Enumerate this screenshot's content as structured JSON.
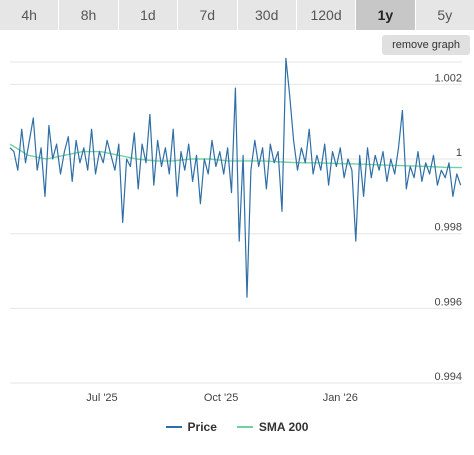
{
  "tabs": [
    {
      "label": "4h",
      "active": false
    },
    {
      "label": "8h",
      "active": false
    },
    {
      "label": "1d",
      "active": false
    },
    {
      "label": "7d",
      "active": false
    },
    {
      "label": "30d",
      "active": false
    },
    {
      "label": "120d",
      "active": false
    },
    {
      "label": "1y",
      "active": true
    },
    {
      "label": "5y",
      "active": false
    }
  ],
  "remove_graph_label": "remove graph",
  "chart_data": {
    "type": "line",
    "title": "",
    "xlabel": "",
    "ylabel": "",
    "ylim": [
      0.994,
      1.0026
    ],
    "yticks": [
      {
        "value": 1.002,
        "label": "1.002"
      },
      {
        "value": 1.0,
        "label": "1"
      },
      {
        "value": 0.998,
        "label": "0.998"
      },
      {
        "value": 0.996,
        "label": "0.996"
      },
      {
        "value": 0.994,
        "label": "0.994"
      }
    ],
    "xlim": [
      "2025-04-21",
      "2026-04-05"
    ],
    "xticks": [
      {
        "date": "2025-07-01",
        "label": "Jul '25"
      },
      {
        "date": "2025-10-01",
        "label": "Oct '25"
      },
      {
        "date": "2026-01-01",
        "label": "Jan '26"
      }
    ],
    "grid": true,
    "legend_position": "bottom",
    "series": [
      {
        "name": "Price",
        "color": "#2f6fa6",
        "x": [
          "2025-04-21",
          "2025-04-24",
          "2025-04-27",
          "2025-04-30",
          "2025-05-03",
          "2025-05-06",
          "2025-05-09",
          "2025-05-12",
          "2025-05-15",
          "2025-05-18",
          "2025-05-21",
          "2025-05-24",
          "2025-05-27",
          "2025-05-30",
          "2025-06-02",
          "2025-06-05",
          "2025-06-08",
          "2025-06-11",
          "2025-06-14",
          "2025-06-17",
          "2025-06-20",
          "2025-06-23",
          "2025-06-26",
          "2025-06-29",
          "2025-07-02",
          "2025-07-05",
          "2025-07-08",
          "2025-07-11",
          "2025-07-14",
          "2025-07-17",
          "2025-07-20",
          "2025-07-23",
          "2025-07-26",
          "2025-07-29",
          "2025-08-01",
          "2025-08-04",
          "2025-08-07",
          "2025-08-10",
          "2025-08-13",
          "2025-08-16",
          "2025-08-19",
          "2025-08-22",
          "2025-08-25",
          "2025-08-28",
          "2025-08-31",
          "2025-09-03",
          "2025-09-06",
          "2025-09-09",
          "2025-09-12",
          "2025-09-15",
          "2025-09-18",
          "2025-09-21",
          "2025-09-24",
          "2025-09-27",
          "2025-09-30",
          "2025-10-03",
          "2025-10-06",
          "2025-10-09",
          "2025-10-12",
          "2025-10-15",
          "2025-10-18",
          "2025-10-21",
          "2025-10-24",
          "2025-10-27",
          "2025-10-30",
          "2025-11-02",
          "2025-11-05",
          "2025-11-08",
          "2025-11-11",
          "2025-11-14",
          "2025-11-17",
          "2025-11-20",
          "2025-11-23",
          "2025-11-26",
          "2025-11-29",
          "2025-12-02",
          "2025-12-05",
          "2025-12-08",
          "2025-12-11",
          "2025-12-14",
          "2025-12-17",
          "2025-12-20",
          "2025-12-23",
          "2025-12-26",
          "2025-12-29",
          "2026-01-01",
          "2026-01-04",
          "2026-01-07",
          "2026-01-10",
          "2026-01-13",
          "2026-01-16",
          "2026-01-19",
          "2026-01-22",
          "2026-01-25",
          "2026-01-28",
          "2026-01-31",
          "2026-02-03",
          "2026-02-06",
          "2026-02-09",
          "2026-02-12",
          "2026-02-15",
          "2026-02-18",
          "2026-02-21",
          "2026-02-24",
          "2026-02-27",
          "2026-03-02",
          "2026-03-05",
          "2026-03-08",
          "2026-03-11",
          "2026-03-14",
          "2026-03-17",
          "2026-03-20",
          "2026-03-23",
          "2026-03-26",
          "2026-03-29",
          "2026-04-01",
          "2026-04-04"
        ],
        "values": [
          1.0003,
          1.0002,
          0.9997,
          1.0008,
          0.9999,
          1.0005,
          1.0011,
          0.9997,
          1.0003,
          0.999,
          1.0009,
          1.0,
          1.0004,
          0.9996,
          1.0002,
          1.0006,
          0.9994,
          1.0005,
          0.9999,
          1.0003,
          0.9997,
          1.0008,
          0.9996,
          1.0002,
          0.9999,
          1.0005,
          1.0001,
          0.9997,
          1.0004,
          0.9983,
          1.0,
          0.9998,
          1.0007,
          0.9992,
          1.0004,
          0.9999,
          1.0012,
          0.9993,
          1.0005,
          0.9998,
          1.0003,
          0.9996,
          1.0008,
          0.999,
          1.0002,
          0.9997,
          1.0004,
          0.9994,
          1.0001,
          0.9988,
          1.0,
          0.9996,
          1.0005,
          0.9998,
          1.0002,
          0.9996,
          1.0003,
          0.9991,
          1.0019,
          0.9978,
          1.0001,
          0.9963,
          0.9997,
          1.0005,
          0.9998,
          1.0003,
          0.9992,
          1.0004,
          0.9999,
          1.0002,
          0.9986,
          1.0027,
          1.0017,
          1.0005,
          0.9997,
          1.0003,
          0.9999,
          1.0008,
          0.9996,
          1.0001,
          0.9997,
          1.0004,
          0.9993,
          1.0002,
          0.9998,
          1.0003,
          0.9995,
          1.0,
          0.9997,
          0.9978,
          1.0001,
          0.999,
          1.0003,
          0.9995,
          1.0001,
          0.9997,
          1.0002,
          0.9994,
          1.0,
          0.9996,
          1.0003,
          1.0013,
          0.9992,
          0.9998,
          0.9995,
          1.0002,
          0.9994,
          0.9999,
          0.9996,
          1.0001,
          0.9993,
          0.9997,
          0.9995,
          0.9999,
          0.999,
          0.9996,
          0.9993
        ]
      },
      {
        "name": "SMA 200",
        "color": "#6fd3a0",
        "x": [
          "2025-04-21",
          "2025-05-05",
          "2025-05-19",
          "2025-06-02",
          "2025-06-16",
          "2025-06-30",
          "2025-07-14",
          "2025-07-28",
          "2025-08-11",
          "2025-08-25",
          "2025-09-08",
          "2025-09-22",
          "2025-10-06",
          "2025-10-20",
          "2025-11-03",
          "2025-11-17",
          "2025-12-01",
          "2025-12-15",
          "2025-12-29",
          "2026-01-12",
          "2026-01-26",
          "2026-02-09",
          "2026-02-23",
          "2026-03-09",
          "2026-03-23",
          "2026-04-05"
        ],
        "values": [
          1.0004,
          1.0001,
          1.0,
          1.0001,
          1.0002,
          1.0002,
          1.0001,
          1.0,
          0.99995,
          0.99995,
          1.0,
          1.0,
          0.99995,
          0.99995,
          0.99995,
          0.99992,
          0.9999,
          0.9999,
          0.99988,
          0.99987,
          0.99985,
          0.99983,
          0.99982,
          0.9998,
          0.99978,
          0.99977
        ]
      }
    ]
  }
}
